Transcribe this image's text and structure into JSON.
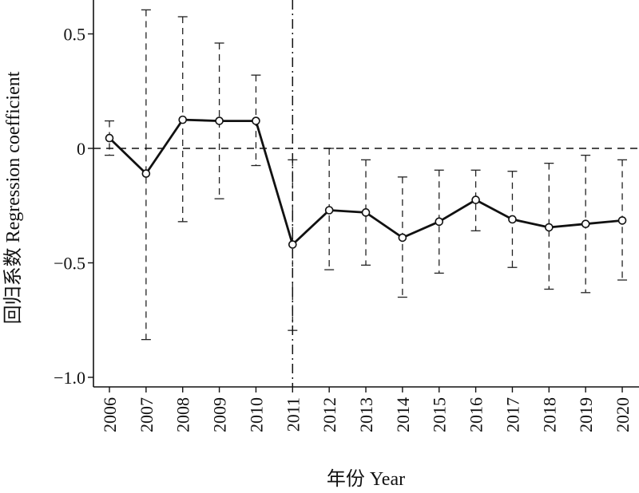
{
  "chart_data": {
    "type": "line",
    "title": "",
    "xlabel": "年份 Year",
    "ylabel": "回归系数 Regression coefficient",
    "x": [
      "2006",
      "2007",
      "2008",
      "2009",
      "2010",
      "2011",
      "2012",
      "2013",
      "2014",
      "2015",
      "2016",
      "2017",
      "2018",
      "2019",
      "2020"
    ],
    "series": [
      {
        "values": [
          0.045,
          -0.11,
          0.125,
          0.12,
          0.12,
          -0.42,
          -0.27,
          -0.28,
          -0.39,
          -0.32,
          -0.225,
          -0.31,
          -0.345,
          -0.33,
          -0.315
        ],
        "error_lower": [
          -0.03,
          -0.835,
          -0.32,
          -0.22,
          -0.075,
          -0.795,
          -0.53,
          -0.51,
          -0.65,
          -0.545,
          -0.36,
          -0.52,
          -0.615,
          -0.63,
          -0.575
        ],
        "error_upper": [
          0.12,
          0.605,
          0.575,
          0.46,
          0.32,
          -0.05,
          0.0,
          -0.05,
          -0.125,
          -0.095,
          -0.095,
          -0.1,
          -0.065,
          -0.03,
          -0.05
        ]
      }
    ],
    "ylim": [
      -1.05,
      0.65
    ],
    "yticks": [
      0.5,
      0,
      -0.5,
      -1.0
    ],
    "ytick_labels": [
      "0.5",
      "0",
      "−0.5",
      "−1.0"
    ],
    "reference_lines": {
      "horizontal_y": 0,
      "vertical_x": "2011"
    },
    "grid": false,
    "legend": "none",
    "line_color": "#111111"
  }
}
